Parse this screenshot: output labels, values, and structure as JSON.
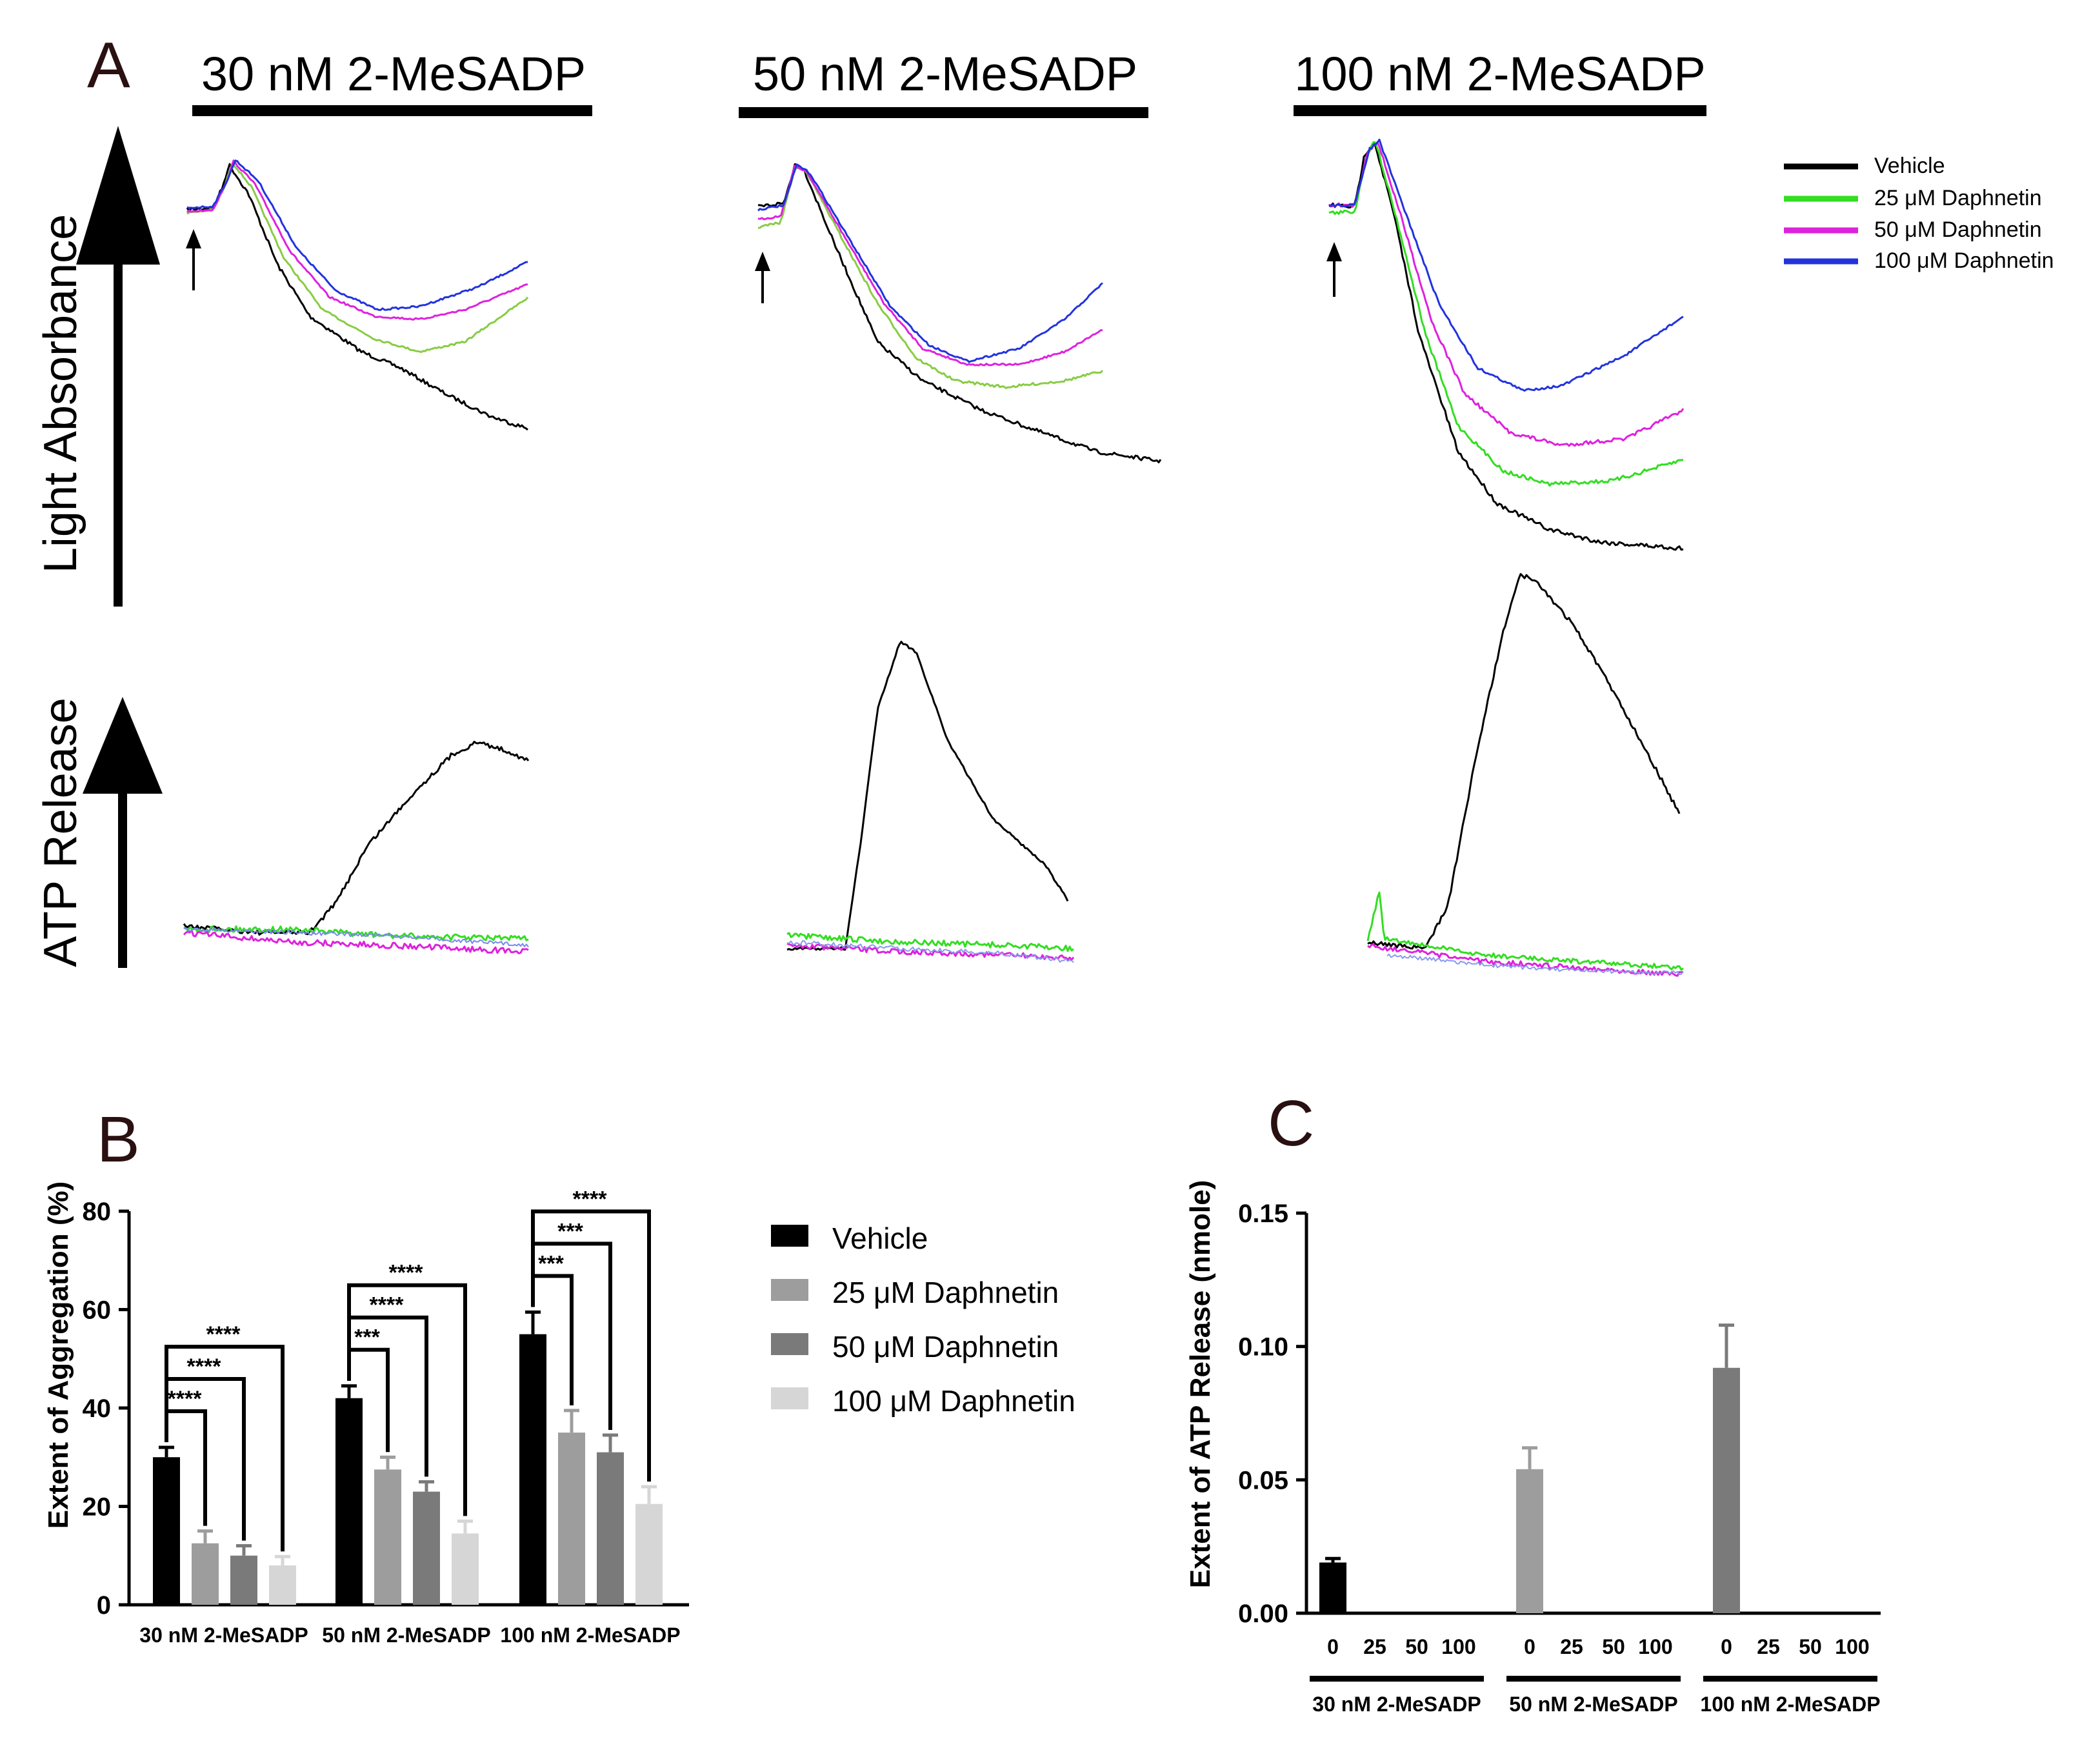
{
  "panels": {
    "A": "A",
    "B": "B",
    "C": "C"
  },
  "colors": {
    "vehicle": "#000000",
    "daph25": "#33dd22",
    "daph50": "#dd22dd",
    "daph100": "#2233dd",
    "daph25_light": "#88cc44",
    "bar_vehicle": "#000000",
    "bar_25": "#9d9d9d",
    "bar_50": "#7a7a7a",
    "bar_100": "#d6d6d6"
  },
  "panel_a": {
    "conditions": [
      "30 nM 2-MeSADP",
      "50 nM 2-MeSADP",
      "100 nM 2-MeSADP"
    ],
    "ylabel_top": "Light Absorbance",
    "ylabel_bottom": "ATP Release",
    "legend": [
      "Vehicle",
      "25 μM Daphnetin",
      "50 μM Daphnetin",
      "100 μM Daphnetin"
    ],
    "agonist_marker": "up-arrow-icon"
  },
  "chart_data": [
    {
      "type": "bar",
      "title": "",
      "xlabel": "",
      "ylabel": "Extent of Aggregation (%)",
      "ylim": [
        0,
        80
      ],
      "yticks": [
        "0",
        "20",
        "40",
        "60",
        "80"
      ],
      "categories": [
        "30 nM 2-MeSADP",
        "50 nM 2-MeSADP",
        "100 nM 2-MeSADP"
      ],
      "legend": [
        "Vehicle",
        "25 μM Daphnetin",
        "50 μM Daphnetin",
        "100 μM Daphnetin"
      ],
      "series": [
        {
          "name": "Vehicle",
          "values": [
            30,
            42,
            55
          ],
          "errors": [
            2,
            2.5,
            4.5
          ]
        },
        {
          "name": "25 μM Daphnetin",
          "values": [
            12.5,
            27.5,
            35
          ],
          "errors": [
            2.5,
            2.5,
            4.5
          ]
        },
        {
          "name": "50 μM Daphnetin",
          "values": [
            10,
            23,
            31
          ],
          "errors": [
            2,
            2,
            3.5
          ]
        },
        {
          "name": "100 μM Daphnetin",
          "values": [
            8,
            14.5,
            20.5
          ],
          "errors": [
            1.8,
            2.5,
            3.5
          ]
        }
      ],
      "significance": [
        [
          "****",
          "****",
          "****"
        ],
        [
          "***",
          "****",
          "****"
        ],
        [
          "***",
          "***",
          "****"
        ]
      ]
    },
    {
      "type": "bar",
      "title": "",
      "xlabel": "",
      "ylabel": "Extent of ATP Release (nmole)",
      "ylim": [
        0,
        0.15
      ],
      "yticks": [
        "0.00",
        "0.05",
        "0.10",
        "0.15"
      ],
      "groups": [
        "30 nM 2-MeSADP",
        "50 nM 2-MeSADP",
        "100 nM 2-MeSADP"
      ],
      "sublabels": [
        "0",
        "25",
        "50",
        "100"
      ],
      "series": [
        {
          "name": "30 nM 2-MeSADP",
          "values": [
            0.019,
            0,
            0,
            0
          ],
          "errors": [
            0.0015,
            0,
            0,
            0
          ]
        },
        {
          "name": "50 nM 2-MeSADP",
          "values": [
            0.054,
            0,
            0,
            0
          ],
          "errors": [
            0.008,
            0,
            0,
            0
          ]
        },
        {
          "name": "100 nM 2-MeSADP",
          "values": [
            0.092,
            0,
            0,
            0
          ],
          "errors": [
            0.016,
            0,
            0,
            0
          ]
        }
      ]
    }
  ]
}
